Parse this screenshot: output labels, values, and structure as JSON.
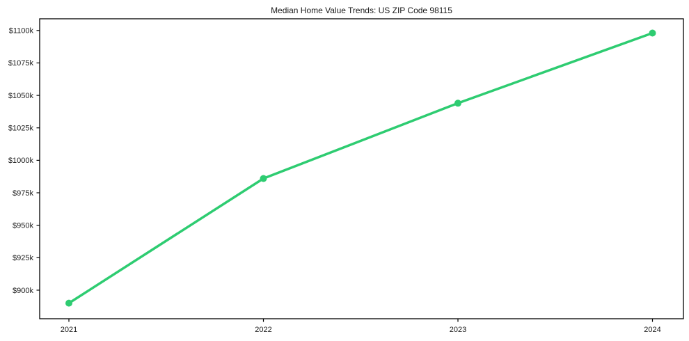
{
  "figure": {
    "background": "#ffffff"
  },
  "chart_data": {
    "type": "line",
    "title": "Median Home Value Trends: US ZIP Code 98115",
    "x_labels": [
      "2021",
      "2022",
      "2023",
      "2024"
    ],
    "series": [
      {
        "name": "Median home value",
        "unit": "$k",
        "values": [
          890,
          986,
          1044,
          1098
        ],
        "color": "#2ecc71"
      }
    ],
    "y_ticks": [
      900,
      925,
      950,
      975,
      1000,
      1025,
      1050,
      1075,
      1100
    ],
    "y_tick_labels": [
      "$900k",
      "$925k",
      "$950k",
      "$975k",
      "$1000k",
      "$1025k",
      "$1050k",
      "$1075k",
      "$1100k"
    ],
    "ylim": [
      878,
      1109
    ],
    "xlabel": "",
    "ylabel": "",
    "grid": false,
    "legend": "none",
    "marker": "circle",
    "line_width": 3.5,
    "marker_radius": 5,
    "axis_color": "#000000",
    "text_color": "#1a1a1a"
  }
}
